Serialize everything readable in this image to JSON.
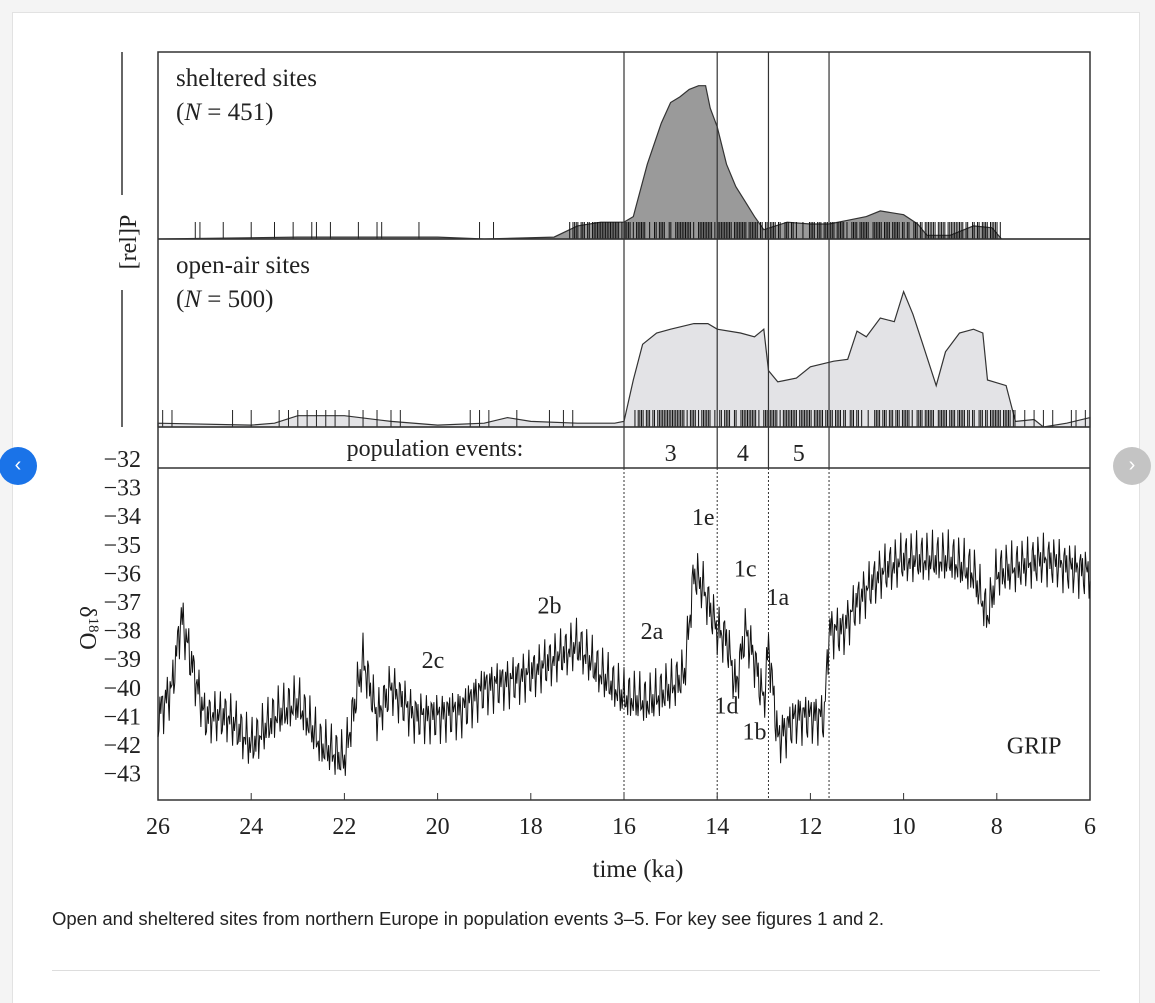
{
  "carousel": {
    "prev_icon": "‹",
    "next_icon": "›",
    "accent": "#1a73e8"
  },
  "caption": "Open and sheltered sites from northern Europe in population events 3–5. For key see figures 1 and 2.",
  "chart_data": {
    "type": "area",
    "xlabel": "time (ka)",
    "xlim": [
      26,
      6
    ],
    "xticks": [
      26,
      24,
      22,
      20,
      18,
      16,
      14,
      12,
      10,
      8,
      6
    ],
    "rel_axis_label": "[rel]P",
    "panels": [
      {
        "title": "sheltered sites",
        "n_label": "(N = 451)",
        "n_var": "N",
        "n_val": "= 451)",
        "fill": "#9a9a9a",
        "x": [
          26,
          23,
          20,
          19,
          17.5,
          17,
          16.5,
          16,
          15.8,
          15.5,
          15.2,
          15,
          14.8,
          14.6,
          14.4,
          14.25,
          14.15,
          14,
          13.8,
          13.6,
          13.4,
          13.2,
          13,
          12.5,
          12,
          11.6,
          11.2,
          10.8,
          10.5,
          10,
          9.7,
          9.5,
          9,
          8.5,
          8.1,
          7.9,
          6
        ],
        "y": [
          0,
          0.01,
          0.01,
          0,
          0.01,
          0.07,
          0.09,
          0.09,
          0.12,
          0.4,
          0.62,
          0.73,
          0.76,
          0.8,
          0.82,
          0.82,
          0.7,
          0.6,
          0.4,
          0.28,
          0.2,
          0.12,
          0.05,
          0.09,
          0.08,
          0.08,
          0.1,
          0.12,
          0.15,
          0.13,
          0.08,
          0.02,
          0.02,
          0.07,
          0.06,
          0,
          0
        ],
        "rug_ticks": [
          25.2,
          25.1,
          24.6,
          24,
          23.5,
          23.1,
          22.7,
          22.6,
          22.3,
          21.7,
          21.3,
          21.2,
          20.4,
          19.1,
          18.8
        ],
        "rug_dense": [
          [
            17.2,
            7.9
          ]
        ]
      },
      {
        "title": "open-air sites",
        "n_label": "(N = 500)",
        "n_var": "N",
        "n_val": "= 500)",
        "fill": "#e3e3e6",
        "x": [
          26,
          24,
          23.5,
          23,
          22,
          21,
          20,
          19,
          18.5,
          18,
          17,
          16.2,
          16,
          15.8,
          15.6,
          15.3,
          15,
          14.5,
          14.2,
          14,
          13.5,
          13.2,
          13,
          12.9,
          12.7,
          12.3,
          12,
          11.5,
          11.2,
          11,
          10.8,
          10.5,
          10.2,
          10,
          9.8,
          9.6,
          9.3,
          9.1,
          8.8,
          8.5,
          8.3,
          8.2,
          7.8,
          7.6,
          7.2,
          7,
          6.5,
          6
        ],
        "y": [
          0.02,
          0.01,
          0.02,
          0.06,
          0.06,
          0.03,
          0.01,
          0.02,
          0.05,
          0.03,
          0.02,
          0.02,
          0.03,
          0.25,
          0.44,
          0.5,
          0.52,
          0.55,
          0.55,
          0.52,
          0.5,
          0.48,
          0.52,
          0.3,
          0.24,
          0.26,
          0.32,
          0.35,
          0.36,
          0.51,
          0.48,
          0.58,
          0.56,
          0.72,
          0.6,
          0.45,
          0.22,
          0.4,
          0.5,
          0.52,
          0.5,
          0.25,
          0.22,
          0.03,
          0.04,
          0,
          0.02,
          0.05
        ],
        "rug_ticks": [
          25.9,
          25.7,
          24.4,
          24.0,
          23.4,
          23.2,
          23.0,
          22.8,
          22.6,
          22.4,
          22.2,
          21.9,
          21.6,
          21.3,
          21.0,
          20.8,
          19.3,
          19.1,
          18.9,
          18.3,
          17.6,
          17.3,
          17.1,
          7.4,
          7.2,
          7.0,
          6.8,
          6.4,
          6.3,
          6.1
        ],
        "rug_dense": [
          [
            15.8,
            7.6
          ]
        ]
      }
    ],
    "events": {
      "label": "population events:",
      "boundaries": [
        16,
        14,
        12.9,
        11.6
      ],
      "names": [
        "3",
        "4",
        "5"
      ]
    },
    "grip": {
      "name": "GRIP",
      "ylabel": "δ18O",
      "ylabel_main": "δ",
      "ylabel_sup": "18",
      "ylabel_end": "O",
      "ylim": [
        -32,
        -43.9
      ],
      "yticks": [
        -32,
        -33,
        -34,
        -35,
        -36,
        -37,
        -38,
        -39,
        -40,
        -41,
        -42,
        -43
      ],
      "x": [
        26,
        25.7,
        25.5,
        25.3,
        25,
        24.5,
        24,
        23.5,
        23,
        22.5,
        22,
        21.6,
        21.3,
        21,
        20.5,
        20,
        19.5,
        19,
        18.5,
        18,
        17.5,
        17,
        16.5,
        16,
        15.5,
        15,
        14.7,
        14.5,
        14.3,
        14,
        13.8,
        13.6,
        13.4,
        13.2,
        13,
        12.9,
        12.7,
        12.3,
        12,
        11.7,
        11.6,
        11.3,
        11,
        10.5,
        10,
        9.5,
        9,
        8.5,
        8.2,
        8,
        7,
        6
      ],
      "y": [
        -41,
        -40,
        -37.5,
        -39,
        -41,
        -41,
        -42,
        -41,
        -40.5,
        -42,
        -42.5,
        -39,
        -41,
        -40,
        -41,
        -41,
        -40.8,
        -40,
        -39.8,
        -39.5,
        -39,
        -38.5,
        -39.5,
        -40.3,
        -40.5,
        -40,
        -39.5,
        -36,
        -36.5,
        -38,
        -38.3,
        -40,
        -38,
        -39,
        -40.5,
        -38.5,
        -41.8,
        -41,
        -41,
        -41,
        -38,
        -38,
        -37,
        -36,
        -35.5,
        -35.5,
        -35.5,
        -36,
        -37.5,
        -36,
        -35.5,
        -36
      ],
      "annotations": [
        {
          "text": "2c",
          "x": 20.1,
          "y": -39.3
        },
        {
          "text": "2b",
          "x": 17.6,
          "y": -37.4
        },
        {
          "text": "2a",
          "x": 15.4,
          "y": -38.3
        },
        {
          "text": "1e",
          "x": 14.3,
          "y": -34.3
        },
        {
          "text": "1c",
          "x": 13.4,
          "y": -36.1
        },
        {
          "text": "1a",
          "x": 12.7,
          "y": -37.1
        },
        {
          "text": "1d",
          "x": 13.8,
          "y": -40.9
        },
        {
          "text": "1b",
          "x": 13.2,
          "y": -41.8
        },
        {
          "text": "GRIP",
          "x": 7.2,
          "y": -42.3
        }
      ]
    }
  }
}
